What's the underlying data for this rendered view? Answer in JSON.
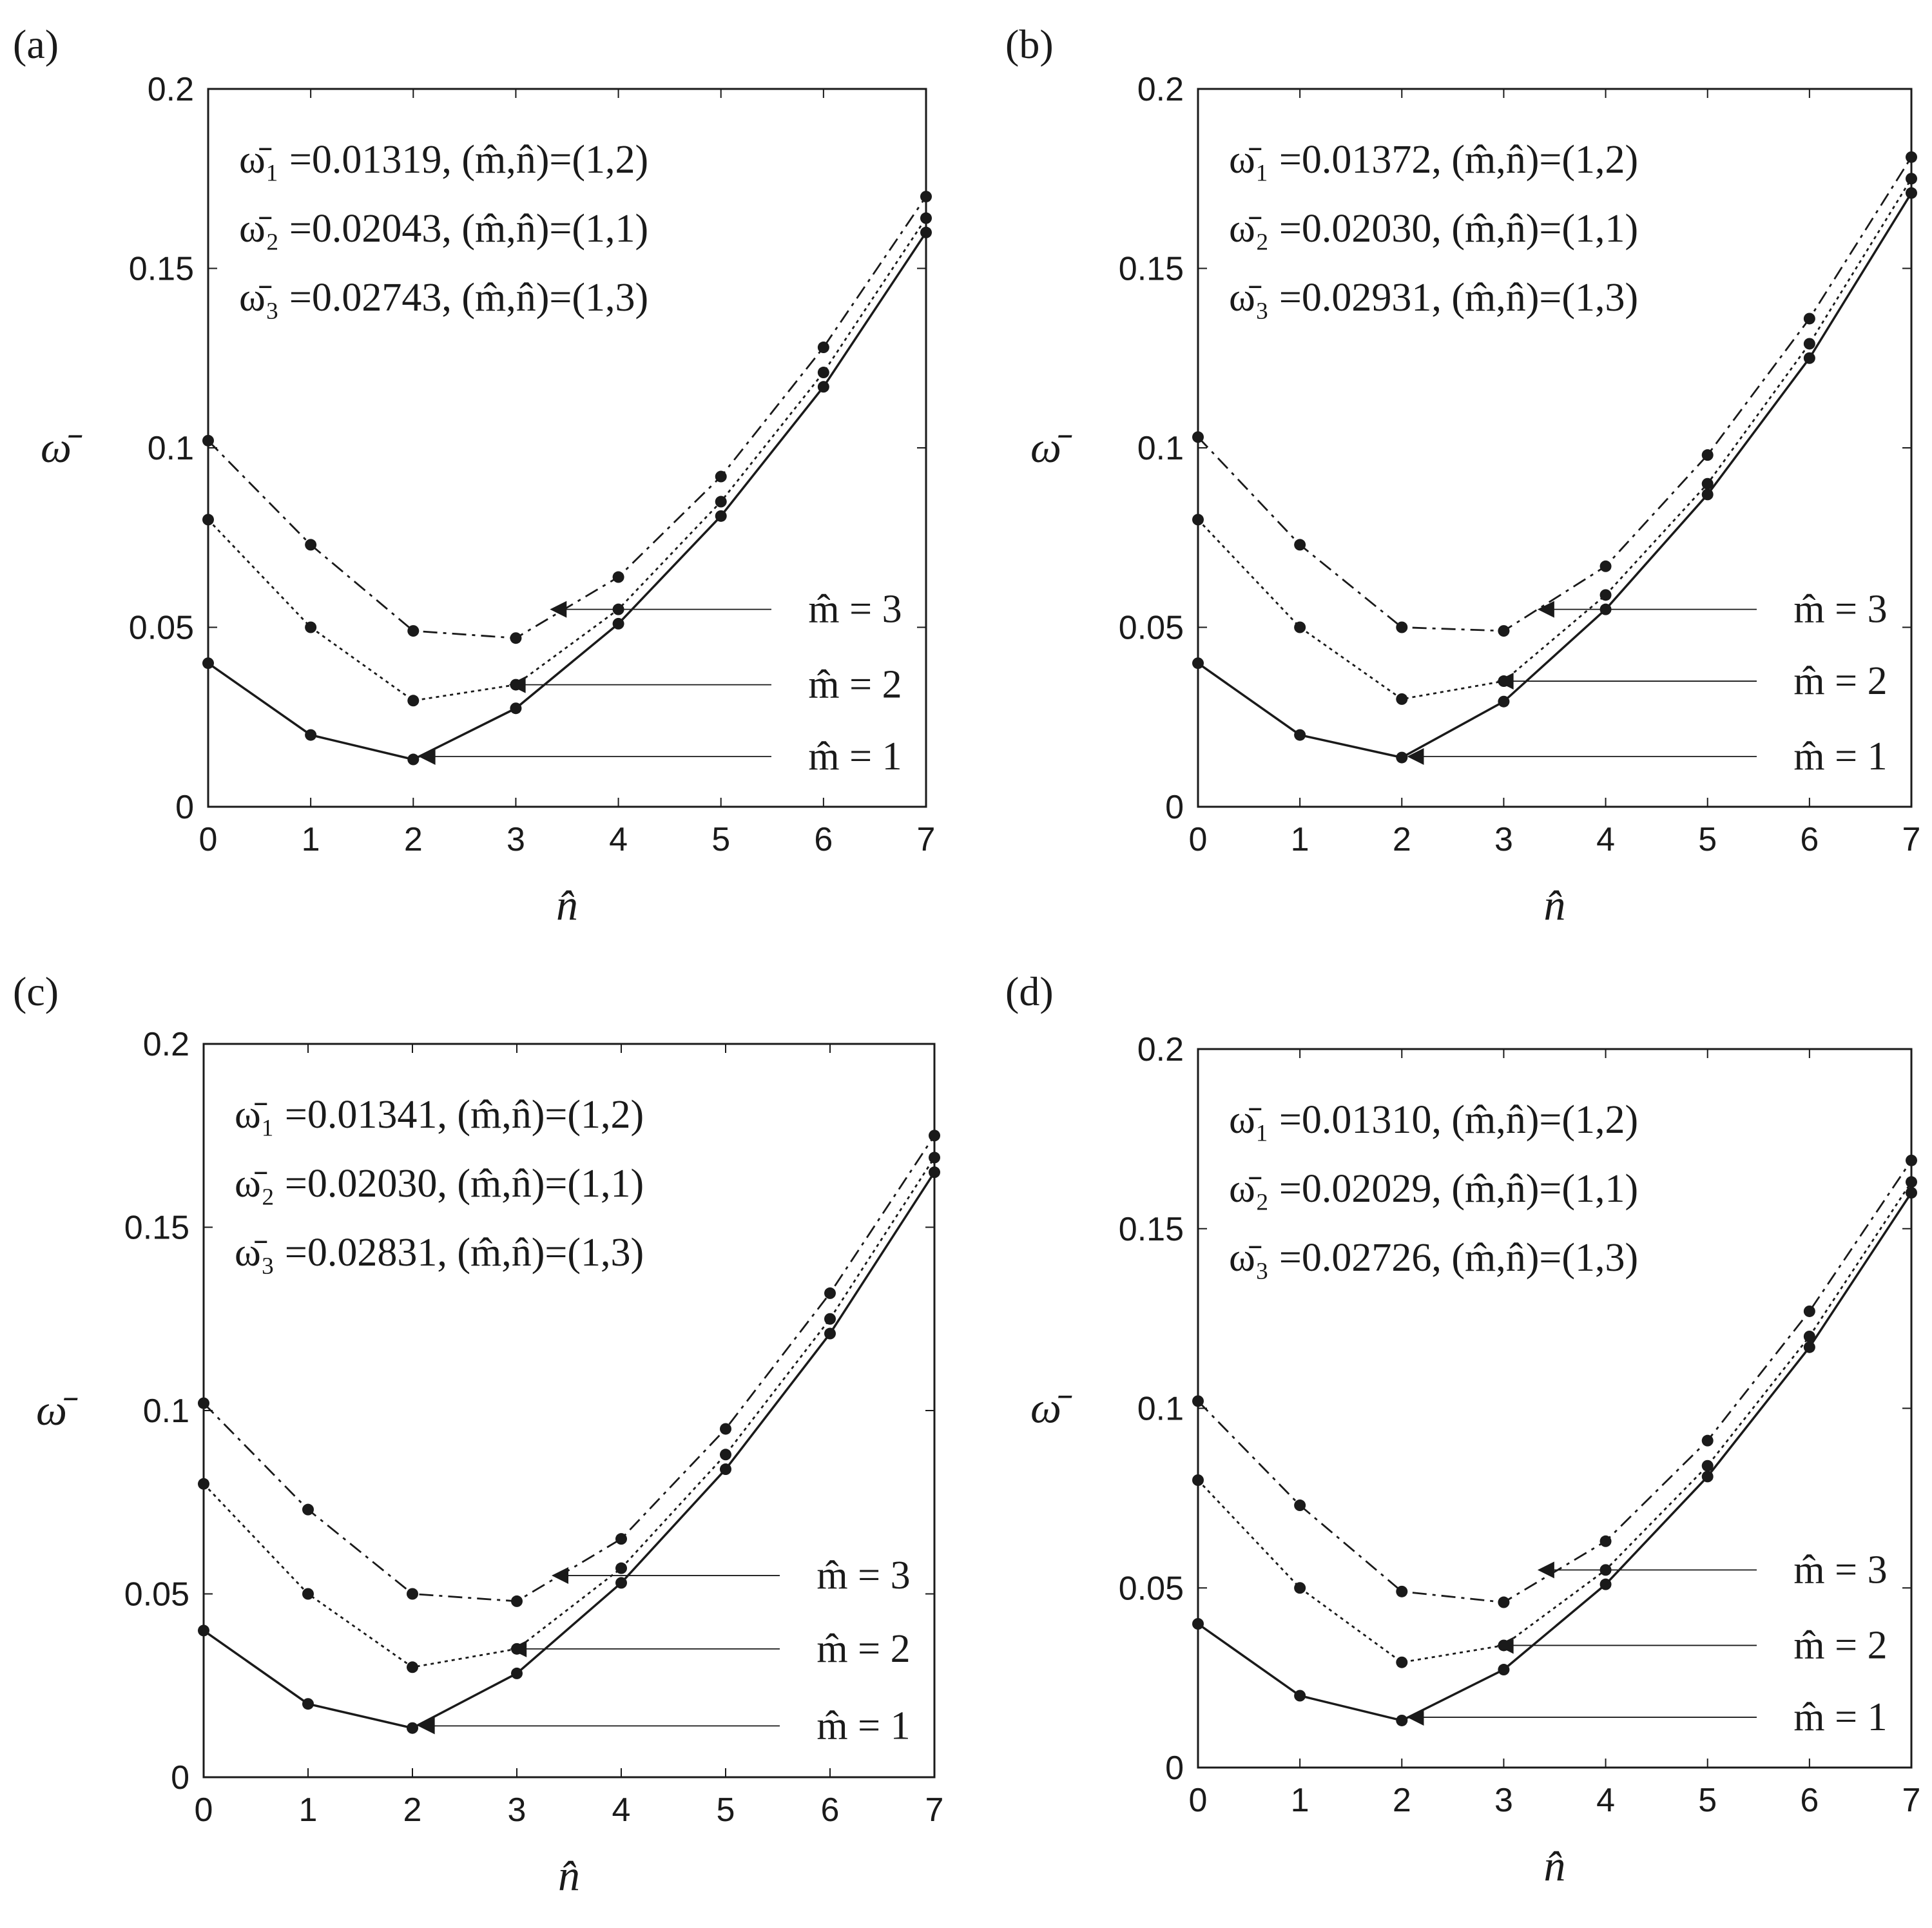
{
  "chart_data": [
    {
      "panel": "(a)",
      "type": "line",
      "xlabel": "n̂",
      "ylabel": "ω̄",
      "xlim": [
        0,
        7
      ],
      "ylim": [
        0,
        0.2
      ],
      "xticks": [
        "0",
        "1",
        "2",
        "3",
        "4",
        "5",
        "6",
        "7"
      ],
      "yticks": [
        "0",
        "0.05",
        "0.1",
        "0.15",
        "0.2"
      ],
      "x": [
        0,
        1,
        2,
        3,
        4,
        5,
        6,
        7
      ],
      "series": [
        {
          "name": "m̂ = 1",
          "style": "solid",
          "values": [
            0.04,
            0.02,
            0.01319,
            0.02743,
            0.051,
            0.081,
            0.117,
            0.16
          ]
        },
        {
          "name": "m̂ = 2",
          "style": "dotted",
          "values": [
            0.08,
            0.05,
            0.02957,
            0.034,
            0.055,
            0.085,
            0.121,
            0.164
          ]
        },
        {
          "name": "m̂ = 3",
          "style": "dashdot",
          "values": [
            0.102,
            0.073,
            0.049,
            0.047,
            0.064,
            0.092,
            0.128,
            0.17
          ]
        }
      ],
      "label_arrow_y": [
        0.014,
        0.034,
        0.055
      ],
      "annotations": [
        "ω̄₁ =0.01319, (m̂,n̂)=(1,2)",
        "ω̄₂ =0.02043, (m̂,n̂)=(1,1)",
        "ω̄₃ =0.02743, (m̂,n̂)=(1,3)"
      ]
    },
    {
      "panel": "(b)",
      "type": "line",
      "xlabel": "n̂",
      "ylabel": "ω̄",
      "xlim": [
        0,
        7
      ],
      "ylim": [
        0,
        0.2
      ],
      "xticks": [
        "0",
        "1",
        "2",
        "3",
        "4",
        "5",
        "6",
        "7"
      ],
      "yticks": [
        "0",
        "0.05",
        "0.1",
        "0.15",
        "0.2"
      ],
      "x": [
        0,
        1,
        2,
        3,
        4,
        5,
        6,
        7
      ],
      "series": [
        {
          "name": "m̂ = 1",
          "style": "solid",
          "values": [
            0.04,
            0.02,
            0.01372,
            0.02931,
            0.055,
            0.087,
            0.125,
            0.171
          ]
        },
        {
          "name": "m̂ = 2",
          "style": "dotted",
          "values": [
            0.08,
            0.05,
            0.03,
            0.035,
            0.059,
            0.09,
            0.129,
            0.175
          ]
        },
        {
          "name": "m̂ = 3",
          "style": "dashdot",
          "values": [
            0.103,
            0.073,
            0.05,
            0.049,
            0.067,
            0.098,
            0.136,
            0.181
          ]
        }
      ],
      "label_arrow_y": [
        0.014,
        0.035,
        0.055
      ],
      "annotations": [
        "ω̄₁ =0.01372, (m̂,n̂)=(1,2)",
        "ω̄₂ =0.02030, (m̂,n̂)=(1,1)",
        "ω̄₃ =0.02931, (m̂,n̂)=(1,3)"
      ]
    },
    {
      "panel": "(c)",
      "type": "line",
      "xlabel": "n̂",
      "ylabel": "ω̄",
      "xlim": [
        0,
        7
      ],
      "ylim": [
        0,
        0.2
      ],
      "xticks": [
        "0",
        "1",
        "2",
        "3",
        "4",
        "5",
        "6",
        "7"
      ],
      "yticks": [
        "0",
        "0.05",
        "0.1",
        "0.15",
        "0.2"
      ],
      "x": [
        0,
        1,
        2,
        3,
        4,
        5,
        6,
        7
      ],
      "series": [
        {
          "name": "m̂ = 1",
          "style": "solid",
          "values": [
            0.04,
            0.02,
            0.01341,
            0.02831,
            0.053,
            0.084,
            0.121,
            0.165
          ]
        },
        {
          "name": "m̂ = 2",
          "style": "dotted",
          "values": [
            0.08,
            0.05,
            0.03,
            0.035,
            0.057,
            0.088,
            0.125,
            0.169
          ]
        },
        {
          "name": "m̂ = 3",
          "style": "dashdot",
          "values": [
            0.102,
            0.073,
            0.05,
            0.048,
            0.065,
            0.095,
            0.132,
            0.175
          ]
        }
      ],
      "label_arrow_y": [
        0.014,
        0.035,
        0.055
      ],
      "annotations": [
        "ω̄₁ =0.01341, (m̂,n̂)=(1,2)",
        "ω̄₂ =0.02030, (m̂,n̂)=(1,1)",
        "ω̄₃ =0.02831, (m̂,n̂)=(1,3)"
      ]
    },
    {
      "panel": "(d)",
      "type": "line",
      "xlabel": "n̂",
      "ylabel": "ω̄",
      "xlim": [
        0,
        7
      ],
      "ylim": [
        0,
        0.2
      ],
      "xticks": [
        "0",
        "1",
        "2",
        "3",
        "4",
        "5",
        "6",
        "7"
      ],
      "yticks": [
        "0",
        "0.05",
        "0.1",
        "0.15",
        "0.2"
      ],
      "x": [
        0,
        1,
        2,
        3,
        4,
        5,
        6,
        7
      ],
      "series": [
        {
          "name": "m̂ = 1",
          "style": "solid",
          "values": [
            0.04,
            0.02,
            0.0131,
            0.02726,
            0.051,
            0.081,
            0.117,
            0.16
          ]
        },
        {
          "name": "m̂ = 2",
          "style": "dotted",
          "values": [
            0.08,
            0.05,
            0.02929,
            0.034,
            0.055,
            0.084,
            0.12,
            0.163
          ]
        },
        {
          "name": "m̂ = 3",
          "style": "dashdot",
          "values": [
            0.102,
            0.073,
            0.049,
            0.046,
            0.063,
            0.091,
            0.127,
            0.169
          ]
        }
      ],
      "label_arrow_y": [
        0.014,
        0.034,
        0.055
      ],
      "annotations": [
        "ω̄₁ =0.01310, (m̂,n̂)=(1,2)",
        "ω̄₂ =0.02029, (m̂,n̂)=(1,1)",
        "ω̄₃ =0.02726, (m̂,n̂)=(1,3)"
      ]
    }
  ]
}
